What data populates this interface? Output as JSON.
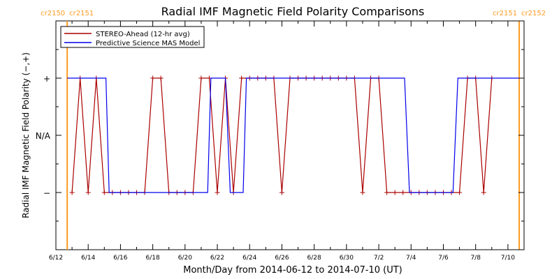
{
  "chart_data": {
    "type": "line",
    "title": "Radial IMF Magnetic Field Polarity Comparisons",
    "xlabel": "Month/Day from 2014-06-12 to 2014-07-10 (UT)",
    "ylabel": "Radial IMF Magnetic Field Polarity (−,+)",
    "x_range_days": [
      0,
      29
    ],
    "y_range": [
      -2.0,
      2.0
    ],
    "x_tick_labels": [
      "6/12",
      "6/14",
      "6/16",
      "6/18",
      "6/20",
      "6/22",
      "6/24",
      "6/26",
      "6/28",
      "6/30",
      "7/2",
      "7/4",
      "7/6",
      "7/8",
      "7/10"
    ],
    "y_ticks": [
      {
        "value": 1,
        "label": "+"
      },
      {
        "value": 0,
        "label": "N/A"
      },
      {
        "value": -1,
        "label": "−"
      }
    ],
    "markers": [
      {
        "day": 0.7,
        "left_label": "cr2150",
        "right_label": "cr2151",
        "color": "#ff9a1f"
      },
      {
        "day": 28.7,
        "left_label": "cr2151",
        "right_label": "cr2152",
        "color": "#ff9a1f"
      }
    ],
    "legend": {
      "placement": "top-left"
    },
    "series": [
      {
        "name": "STEREO-Ahead (12-hr avg)",
        "color": "#aa0000",
        "marker": "plus",
        "x": [
          1.0,
          1.5,
          2.0,
          2.5,
          3.0,
          3.5,
          4.0,
          4.5,
          5.0,
          5.5,
          6.0,
          6.5,
          7.0,
          7.5,
          8.0,
          8.5,
          9.0,
          9.5,
          10.0,
          10.5,
          11.0,
          11.5,
          12.0,
          12.5,
          13.0,
          13.5,
          14.0,
          14.5,
          15.0,
          15.5,
          16.0,
          16.5,
          17.0,
          17.5,
          18.0,
          18.5,
          19.0,
          19.5,
          20.0,
          20.5,
          21.0,
          21.5,
          22.0,
          22.5,
          23.0,
          23.5,
          24.0,
          24.5,
          25.0,
          25.5,
          26.0,
          26.5,
          27.0
        ],
        "y": [
          -1,
          1,
          -1,
          1,
          -1,
          -1,
          -1,
          -1,
          -1,
          -1,
          1,
          1,
          -1,
          -1,
          -1,
          -1,
          1,
          1,
          -1,
          1,
          -1,
          1,
          1,
          1,
          1,
          1,
          -1,
          1,
          1,
          1,
          1,
          1,
          1,
          1,
          1,
          1,
          -1,
          1,
          1,
          -1,
          -1,
          -1,
          -1,
          -1,
          -1,
          -1,
          -1,
          -1,
          -1,
          1,
          1,
          -1,
          1
        ]
      },
      {
        "name": "Predictive Science MAS Model",
        "color": "#0000ee",
        "x": [
          0.7,
          3.1,
          3.3,
          4.3,
          4.4,
          6.0,
          6.5,
          9.4,
          9.6,
          10.5,
          10.8,
          11.6,
          11.8,
          12.3,
          12.4,
          21.6,
          21.9,
          24.6,
          24.9,
          28.7
        ],
        "y": [
          1,
          1,
          -1,
          -1,
          -1,
          -1,
          -1,
          -1,
          1,
          1,
          -1,
          -1,
          1,
          1,
          1,
          1,
          -1,
          -1,
          1,
          1
        ]
      }
    ]
  }
}
